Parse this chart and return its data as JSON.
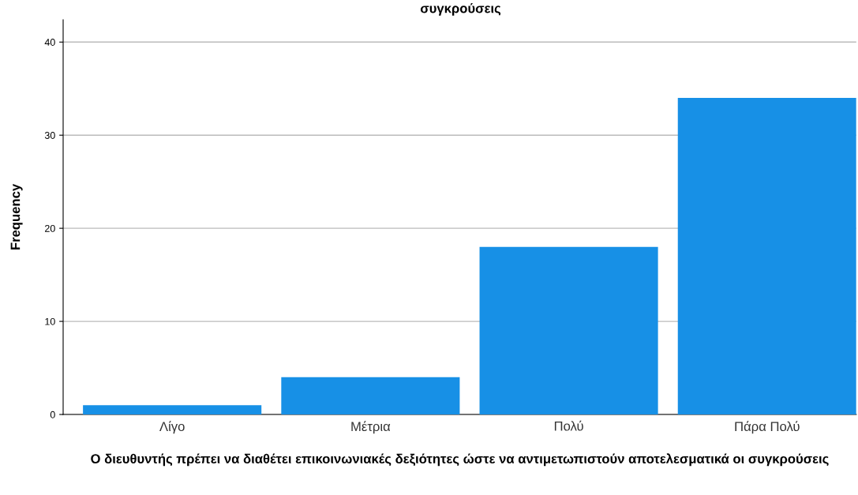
{
  "chart_data": {
    "type": "bar",
    "title": "συγκρούσεις",
    "xlabel": "Ο διευθυντής πρέπει να διαθέτει επικοινωνιακές δεξιότητες ώστε να αντιμετωπιστούν αποτελεσματικά οι συγκρούσεις",
    "ylabel": "Frequency",
    "categories": [
      "Λίγο",
      "Μέτρια",
      "Πολύ",
      "Πάρα Πολύ"
    ],
    "values": [
      1,
      4,
      18,
      34
    ],
    "color": "#1790e6",
    "ylim": [
      0,
      42.4
    ],
    "yticks": [
      0,
      10,
      20,
      30,
      40
    ],
    "grid": "y"
  }
}
